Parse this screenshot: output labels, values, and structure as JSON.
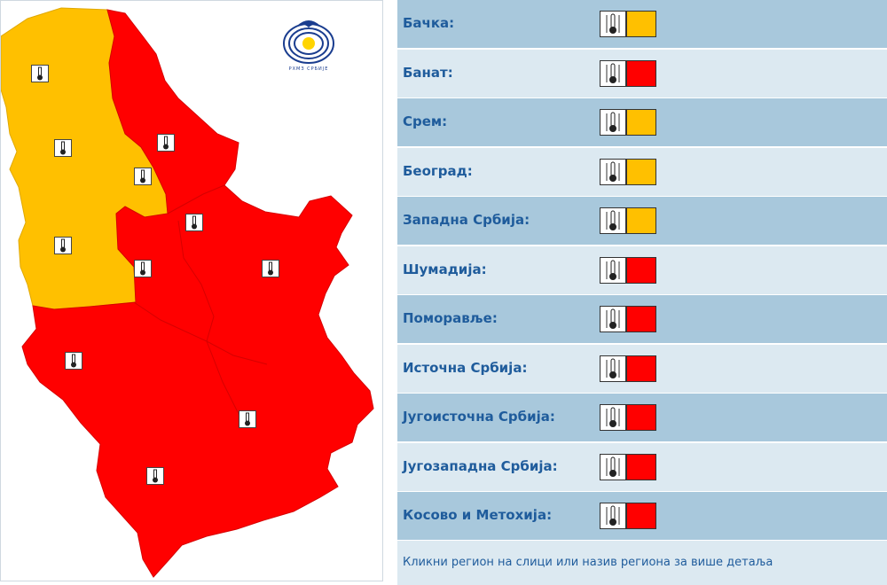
{
  "colors": {
    "yellow_level": "#ffc000",
    "red_level": "#ff0000",
    "row_dark": "#a8c8dc",
    "row_light": "#dce9f1",
    "label_text": "#1f5c9c"
  },
  "logo": {
    "caption": "РХМЗ СРБИЈЕ",
    "icon": "rhmz-logo-icon"
  },
  "map_icons": "thermometer-icon",
  "regions": [
    {
      "label": "Бачка:",
      "level": "yellow"
    },
    {
      "label": "Банат:",
      "level": "red"
    },
    {
      "label": "Срем:",
      "level": "yellow"
    },
    {
      "label": "Београд:",
      "level": "yellow"
    },
    {
      "label": "Западна Србија:",
      "level": "yellow"
    },
    {
      "label": "Шумадија:",
      "level": "red"
    },
    {
      "label": "Поморавље:",
      "level": "red"
    },
    {
      "label": "Источна Србија:",
      "level": "red"
    },
    {
      "label": "Југоисточна Србија:",
      "level": "red"
    },
    {
      "label": "Југозападна Србија:",
      "level": "red"
    },
    {
      "label": "Косово и Метохија:",
      "level": "red"
    }
  ],
  "footer": {
    "hint": "Кликни регион на слици или назив региона за више детаља"
  }
}
